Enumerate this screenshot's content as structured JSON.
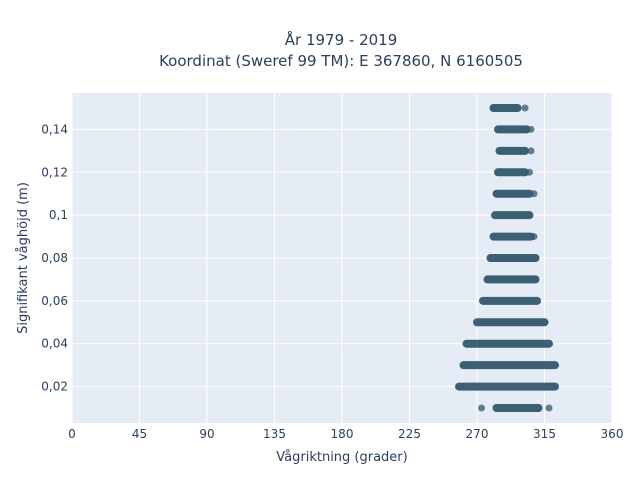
{
  "chart_data": {
    "type": "scatter",
    "title_line1": "År 1979 - 2019",
    "title_line2": "Koordinat (Sweref 99 TM): E 367860, N 6160505",
    "xlabel": "Vågriktning (grader)",
    "ylabel": "Signifikant våghöjd (m)",
    "xlim": [
      0,
      360
    ],
    "ylim": [
      0.003,
      0.157
    ],
    "x_ticks": [
      {
        "value": 0,
        "label": "0"
      },
      {
        "value": 45,
        "label": "45"
      },
      {
        "value": 90,
        "label": "90"
      },
      {
        "value": 135,
        "label": "135"
      },
      {
        "value": 180,
        "label": "180"
      },
      {
        "value": 225,
        "label": "225"
      },
      {
        "value": 270,
        "label": "270"
      },
      {
        "value": 315,
        "label": "315"
      },
      {
        "value": 360,
        "label": "360"
      }
    ],
    "y_ticks": [
      {
        "value": 0.02,
        "label": "0,02"
      },
      {
        "value": 0.04,
        "label": "0,04"
      },
      {
        "value": 0.06,
        "label": "0,06"
      },
      {
        "value": 0.08,
        "label": "0,08"
      },
      {
        "value": 0.1,
        "label": "0,1"
      },
      {
        "value": 0.12,
        "label": "0,12"
      },
      {
        "value": 0.14,
        "label": "0,14"
      }
    ],
    "grid": true,
    "marker_color": "#34586e",
    "plot_bgcolor": "#e5ecf6",
    "series": [
      {
        "bands": [
          {
            "y": 0.01,
            "x_min": 283,
            "x_max": 311,
            "outliers": [
              273,
              318
            ]
          },
          {
            "y": 0.02,
            "x_min": 258,
            "x_max": 322,
            "outliers": []
          },
          {
            "y": 0.03,
            "x_min": 261,
            "x_max": 322,
            "outliers": []
          },
          {
            "y": 0.04,
            "x_min": 263,
            "x_max": 318,
            "outliers": []
          },
          {
            "y": 0.05,
            "x_min": 270,
            "x_max": 315,
            "outliers": []
          },
          {
            "y": 0.06,
            "x_min": 274,
            "x_max": 310,
            "outliers": []
          },
          {
            "y": 0.07,
            "x_min": 277,
            "x_max": 309,
            "outliers": []
          },
          {
            "y": 0.08,
            "x_min": 279,
            "x_max": 309,
            "outliers": []
          },
          {
            "y": 0.09,
            "x_min": 281,
            "x_max": 306,
            "outliers": [
              308
            ]
          },
          {
            "y": 0.1,
            "x_min": 282,
            "x_max": 305,
            "outliers": []
          },
          {
            "y": 0.11,
            "x_min": 283,
            "x_max": 305,
            "outliers": [
              308
            ]
          },
          {
            "y": 0.12,
            "x_min": 284,
            "x_max": 302,
            "outliers": [
              305
            ]
          },
          {
            "y": 0.13,
            "x_min": 285,
            "x_max": 302,
            "outliers": [
              306
            ]
          },
          {
            "y": 0.14,
            "x_min": 284,
            "x_max": 303,
            "outliers": [
              306
            ]
          },
          {
            "y": 0.15,
            "x_min": 281,
            "x_max": 297,
            "outliers": [
              302
            ]
          }
        ]
      }
    ]
  }
}
